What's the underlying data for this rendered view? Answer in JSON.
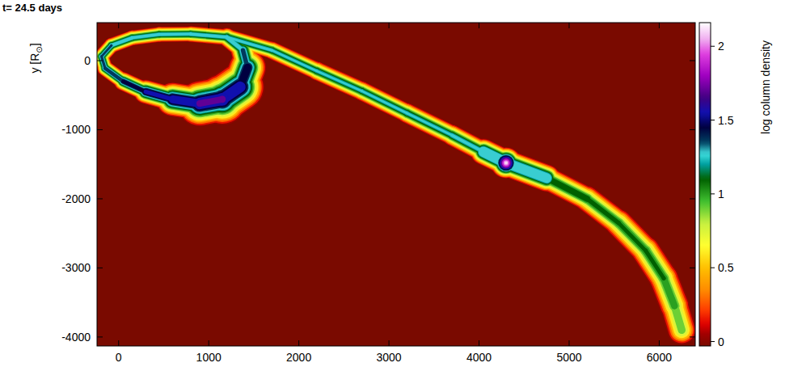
{
  "chart_data": {
    "type": "density_map",
    "title": "t= 24.5 days",
    "y_label": "y [R⊙]",
    "colorbar_label": "log column density",
    "xlim": [
      -240,
      6400
    ],
    "xticks": [
      0,
      1000,
      2000,
      3000,
      4000,
      5000,
      6000
    ],
    "ylim": [
      -4130,
      550
    ],
    "yticks": [
      -4000,
      -3000,
      -2000,
      -1000,
      0
    ],
    "colorbar_lim": [
      -0.03,
      2.16
    ],
    "colorbar_ticks": [
      0,
      0.5,
      1,
      1.5,
      2
    ],
    "streams": [
      {
        "points": [
          {
            "x": 1200,
            "y": 340,
            "value": 1.35,
            "radius": 90
          },
          {
            "x": 800,
            "y": 385,
            "value": 1.35,
            "radius": 80
          },
          {
            "x": 450,
            "y": 380,
            "value": 1.35,
            "radius": 80
          },
          {
            "x": 150,
            "y": 330,
            "value": 1.35,
            "radius": 80
          },
          {
            "x": -80,
            "y": 220,
            "value": 1.4,
            "radius": 80
          },
          {
            "x": -190,
            "y": 60,
            "value": 1.4,
            "radius": 80
          },
          {
            "x": -150,
            "y": -110,
            "value": 1.45,
            "radius": 80
          },
          {
            "x": 50,
            "y": -300,
            "value": 1.5,
            "radius": 90
          },
          {
            "x": 300,
            "y": -450,
            "value": 1.6,
            "radius": 110
          },
          {
            "x": 600,
            "y": -560,
            "value": 1.7,
            "radius": 150
          },
          {
            "x": 900,
            "y": -620,
            "value": 1.8,
            "radius": 220
          },
          {
            "x": 1150,
            "y": -560,
            "value": 1.8,
            "radius": 280
          },
          {
            "x": 1350,
            "y": -380,
            "value": 1.7,
            "radius": 250
          },
          {
            "x": 1430,
            "y": -100,
            "value": 1.5,
            "radius": 160
          },
          {
            "x": 1380,
            "y": 150,
            "value": 1.4,
            "radius": 110
          },
          {
            "x": 1200,
            "y": 340,
            "value": 1.35,
            "radius": 90
          }
        ]
      },
      {
        "points": [
          {
            "x": 1200,
            "y": 340,
            "value": 1.35,
            "radius": 90
          },
          {
            "x": 1700,
            "y": 150,
            "value": 1.3,
            "radius": 90
          },
          {
            "x": 2200,
            "y": -150,
            "value": 1.3,
            "radius": 100
          },
          {
            "x": 2700,
            "y": -440,
            "value": 1.3,
            "radius": 100
          },
          {
            "x": 3200,
            "y": -760,
            "value": 1.3,
            "radius": 105
          },
          {
            "x": 3700,
            "y": -1080,
            "value": 1.3,
            "radius": 110
          },
          {
            "x": 4050,
            "y": -1320,
            "value": 1.35,
            "radius": 115
          },
          {
            "x": 4300,
            "y": -1480,
            "value": 2.15,
            "radius": 170
          },
          {
            "x": 4750,
            "y": -1700,
            "value": 1.3,
            "radius": 125
          },
          {
            "x": 5200,
            "y": -2000,
            "value": 1.2,
            "radius": 135
          },
          {
            "x": 5550,
            "y": -2350,
            "value": 1.15,
            "radius": 145
          },
          {
            "x": 5850,
            "y": -2750,
            "value": 1.15,
            "radius": 155
          },
          {
            "x": 6050,
            "y": -3150,
            "value": 1.15,
            "radius": 160
          },
          {
            "x": 6170,
            "y": -3550,
            "value": 1.1,
            "radius": 160
          },
          {
            "x": 6250,
            "y": -3900,
            "value": 1.0,
            "radius": 150
          }
        ]
      }
    ]
  }
}
